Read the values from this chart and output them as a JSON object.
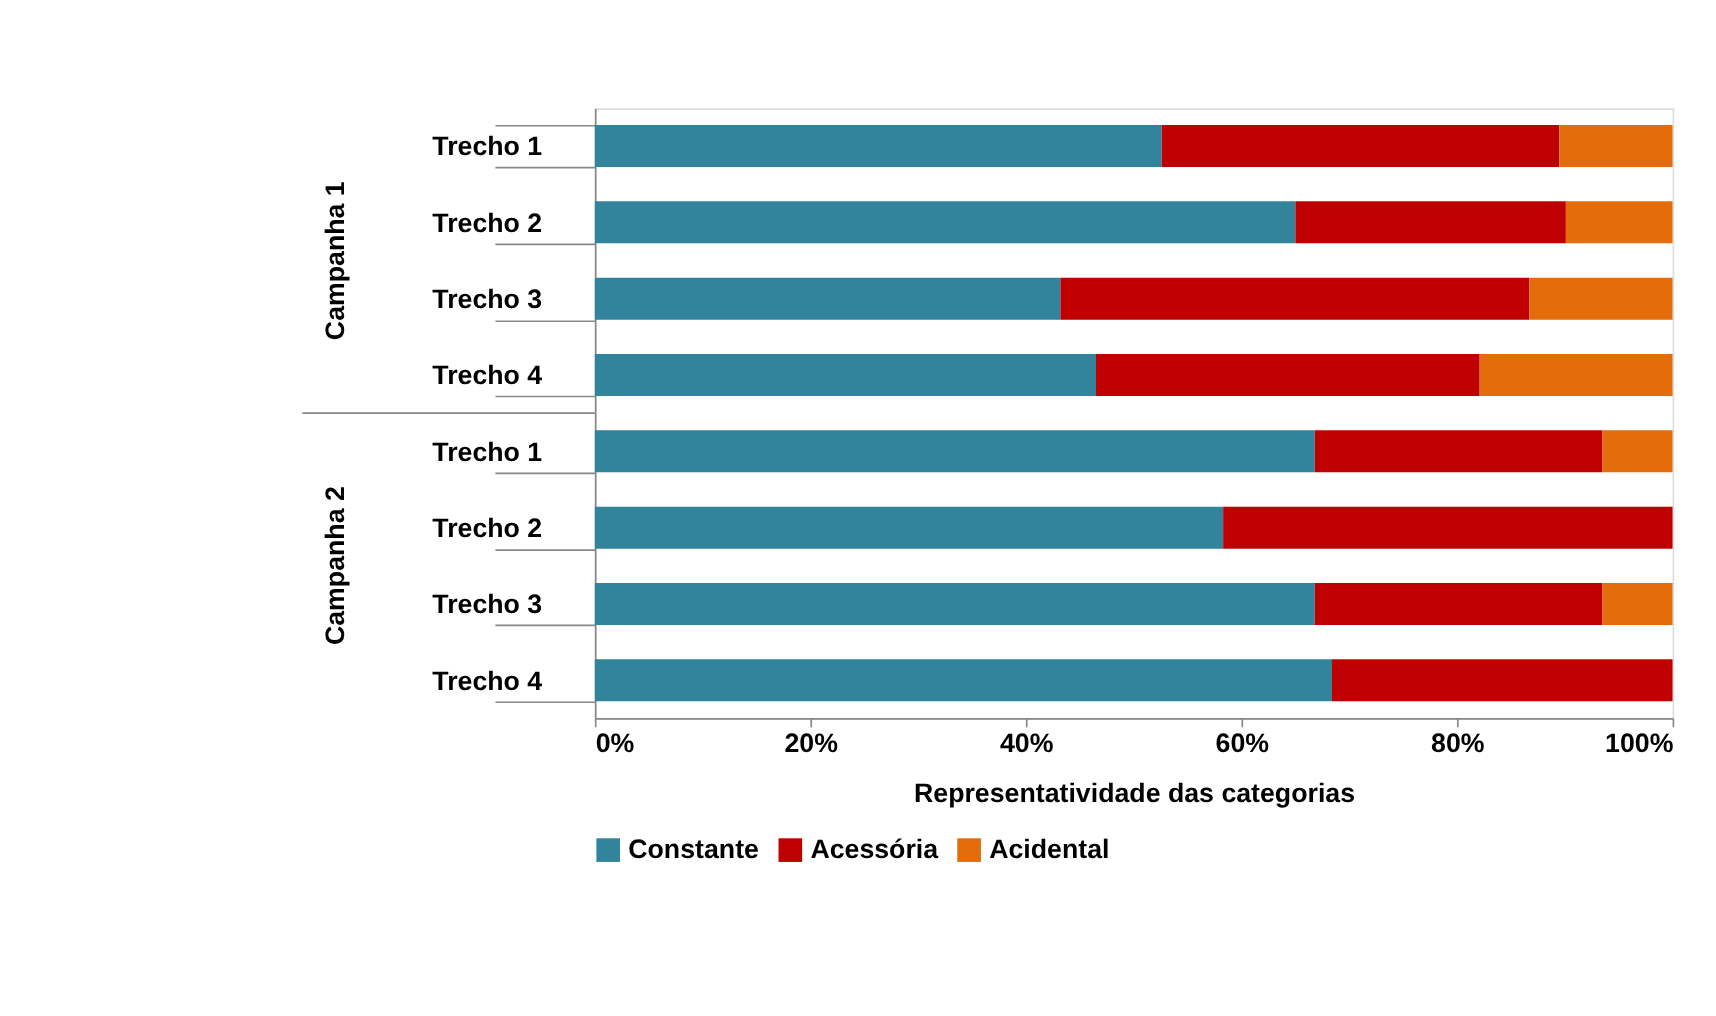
{
  "chart_data": {
    "type": "bar",
    "orientation": "horizontal",
    "stacked": true,
    "categories": [
      "Trecho 1",
      "Trecho 2",
      "Trecho 3",
      "Trecho 4",
      "Trecho 1",
      "Trecho 2",
      "Trecho 3",
      "Trecho 4"
    ],
    "series": [
      {
        "name": "Constante",
        "color": "#31849b",
        "values": [
          52.6,
          65.0,
          43.2,
          46.5,
          66.8,
          58.3,
          66.8,
          68.4
        ]
      },
      {
        "name": "Acessória",
        "color": "#c00000",
        "values": [
          36.9,
          25.1,
          43.5,
          35.6,
          26.7,
          41.7,
          26.7,
          31.6
        ]
      },
      {
        "name": "Acidental",
        "color": "#e46c0a",
        "values": [
          10.5,
          9.9,
          13.3,
          17.9,
          6.5,
          0,
          6.5,
          0
        ]
      }
    ],
    "xlim": [
      0,
      100
    ],
    "xticks": [
      {
        "value": 0,
        "label": "0%"
      },
      {
        "value": 20,
        "label": "20%"
      },
      {
        "value": 40,
        "label": "40%"
      },
      {
        "value": 60,
        "label": "60%"
      },
      {
        "value": 80,
        "label": "80%"
      },
      {
        "value": 100,
        "label": "100%"
      }
    ],
    "xlabel": "Representatividade das categorias",
    "annotations": [
      "Campanha 1",
      "Campanha 2"
    ],
    "grid": false,
    "legend": "bottom"
  }
}
